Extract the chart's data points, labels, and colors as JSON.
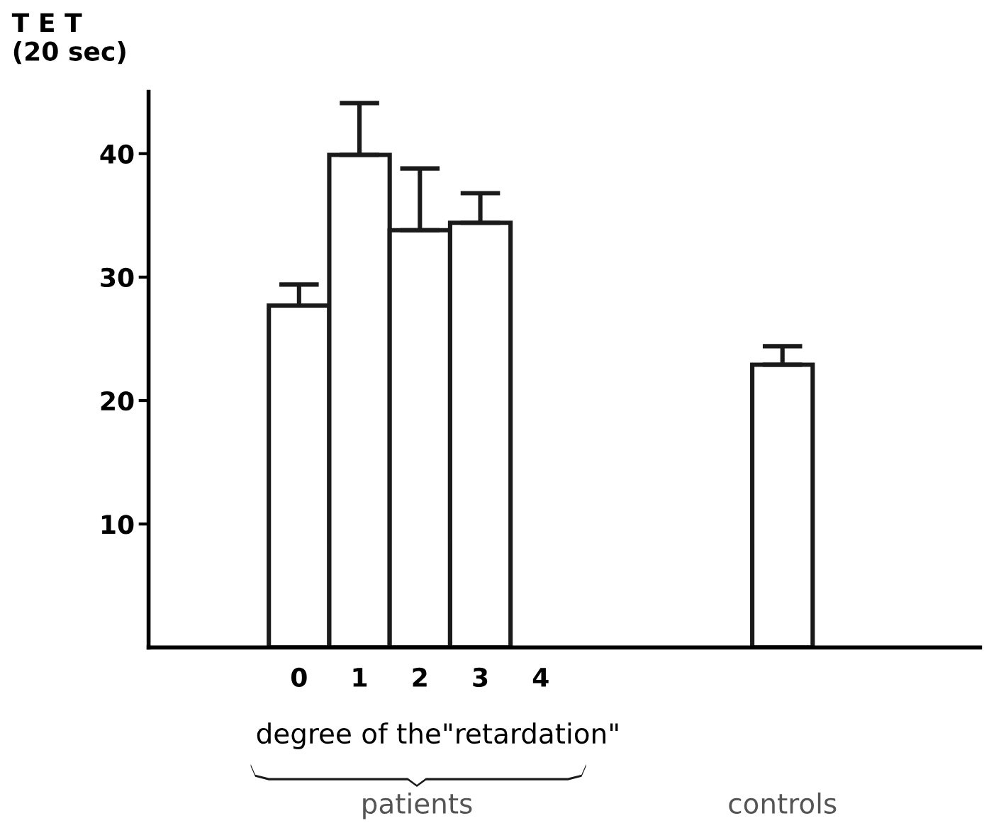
{
  "chart_data": {
    "type": "bar",
    "ylabel": "T E T\n(20 sec)",
    "xlabel": "degree of the\"retardation\"",
    "categories": [
      "0",
      "1",
      "2",
      "3",
      "4",
      null,
      null,
      null,
      null
    ],
    "values": [
      27.7,
      39.9,
      33.8,
      34.4,
      null,
      null,
      null,
      null,
      22.9
    ],
    "errors": [
      [
        27.7,
        29.4
      ],
      [
        39.9,
        44.1
      ],
      [
        33.8,
        38.8
      ],
      [
        34.4,
        36.8
      ],
      null,
      null,
      null,
      null,
      [
        22.9,
        24.4
      ]
    ],
    "color": "#ffffff",
    "ylim": [
      0,
      45
    ],
    "yticks": [
      10,
      20,
      30,
      40
    ],
    "annotations": [
      "patients",
      "controls"
    ],
    "grid": false,
    "legend": false
  }
}
